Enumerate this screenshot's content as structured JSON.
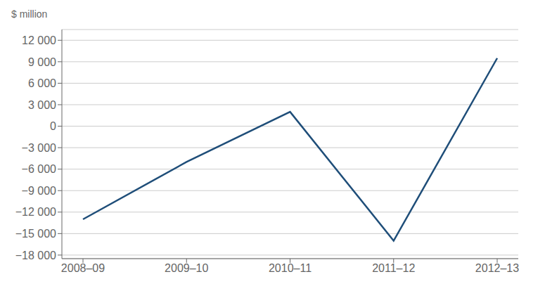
{
  "chart_data": {
    "type": "line",
    "ylabel": "$ million",
    "categories": [
      "2008–09",
      "2009–10",
      "2010–11",
      "2011–12",
      "2012–13"
    ],
    "values": [
      -13000,
      -5000,
      2000,
      -16000,
      9500
    ],
    "color": "#1f4e79",
    "ylim": [
      -18500,
      13500
    ],
    "yticks": [
      {
        "value": 12000,
        "label": "12 000"
      },
      {
        "value": 9000,
        "label": "9 000"
      },
      {
        "value": 6000,
        "label": "6 000"
      },
      {
        "value": 3000,
        "label": "3 000"
      },
      0,
      {
        "value": -3000,
        "label": "−3 000"
      },
      {
        "value": -6000,
        "label": "−6 000"
      },
      {
        "value": -9000,
        "label": "−9 000"
      },
      {
        "value": -12000,
        "label": "−12 000"
      },
      {
        "value": -15000,
        "label": "−15 000"
      },
      {
        "value": -18000,
        "label": "−18 000"
      }
    ],
    "grid": true
  }
}
